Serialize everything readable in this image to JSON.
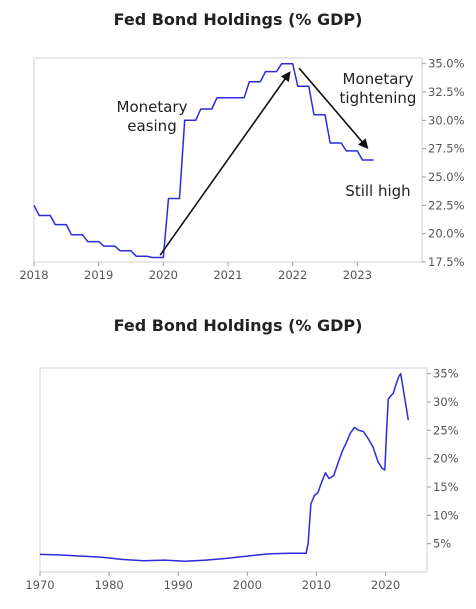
{
  "chart_data": [
    {
      "type": "line",
      "title": "Fed Bond Holdings (% GDP)",
      "xlim": [
        2018,
        2024
      ],
      "ylim": [
        17.5,
        35.5
      ],
      "x_ticks": [
        "2018",
        "2019",
        "2020",
        "2021",
        "2022",
        "2023"
      ],
      "y_ticks": [
        "17.5%",
        "20.0%",
        "22.5%",
        "25.0%",
        "27.5%",
        "30.0%",
        "32.5%",
        "35.0%"
      ],
      "y_axis_side": "right",
      "grid": false,
      "series_color": "#2b2bdc",
      "x": [
        2018.0,
        2018.08,
        2018.25,
        2018.33,
        2018.5,
        2018.58,
        2018.75,
        2018.83,
        2019.0,
        2019.08,
        2019.25,
        2019.33,
        2019.5,
        2019.58,
        2019.75,
        2019.83,
        2020.0,
        2020.08,
        2020.25,
        2020.33,
        2020.5,
        2020.58,
        2020.75,
        2020.83,
        2021.0,
        2021.08,
        2021.25,
        2021.33,
        2021.5,
        2021.58,
        2021.75,
        2021.83,
        2022.0,
        2022.08,
        2022.25,
        2022.33,
        2022.5,
        2022.58,
        2022.75,
        2022.83,
        2023.0,
        2023.08,
        2023.25
      ],
      "values": [
        22.5,
        21.6,
        21.6,
        20.8,
        20.8,
        19.9,
        19.9,
        19.3,
        19.3,
        18.9,
        18.9,
        18.5,
        18.5,
        18.0,
        18.0,
        17.9,
        17.9,
        23.1,
        23.1,
        30.0,
        30.0,
        31.0,
        31.0,
        32.0,
        32.0,
        32.0,
        32.0,
        33.4,
        33.4,
        34.3,
        34.3,
        35.0,
        35.0,
        33.0,
        33.0,
        30.5,
        30.5,
        28.0,
        28.0,
        27.3,
        27.3,
        26.5,
        26.5
      ],
      "annotations": [
        {
          "text": "Monetary",
          "line2": "easing"
        },
        {
          "text": "Monetary",
          "line2": "tightening"
        },
        {
          "text": "Still high"
        }
      ],
      "arrows": [
        {
          "from": [
            2019.95,
            18.1
          ],
          "to": [
            2021.95,
            34.2
          ]
        },
        {
          "from": [
            2022.1,
            34.6
          ],
          "to": [
            2023.15,
            27.6
          ]
        }
      ]
    },
    {
      "type": "line",
      "title": "Fed Bond Holdings (% GDP)",
      "xlim": [
        1970,
        2026
      ],
      "ylim": [
        0,
        36
      ],
      "x_ticks": [
        "1970",
        "1980",
        "1990",
        "2000",
        "2010",
        "2020"
      ],
      "y_ticks": [
        "5%",
        "10%",
        "15%",
        "20%",
        "25%",
        "30%",
        "35%"
      ],
      "y_axis_side": "right",
      "grid": false,
      "series_color": "#2b2bdc",
      "x": [
        1970,
        1973,
        1976,
        1979,
        1982,
        1985,
        1988,
        1991,
        1994,
        1997,
        2000,
        2003,
        2006,
        2008.5,
        2008.8,
        2009.2,
        2009.7,
        2010.2,
        2010.8,
        2011.3,
        2011.8,
        2012.5,
        2013.2,
        2013.8,
        2014.4,
        2014.9,
        2015.5,
        2016.1,
        2016.8,
        2017.5,
        2018.2,
        2018.9,
        2019.5,
        2019.9,
        2020.2,
        2020.4,
        2020.7,
        2021.1,
        2021.5,
        2021.9,
        2022.2,
        2022.6,
        2023.0,
        2023.3
      ],
      "values": [
        3.1,
        3.0,
        2.8,
        2.6,
        2.2,
        2.0,
        2.1,
        1.9,
        2.1,
        2.4,
        2.8,
        3.2,
        3.3,
        3.3,
        5.0,
        12.0,
        13.5,
        14.0,
        16.0,
        17.5,
        16.5,
        17.0,
        19.5,
        21.5,
        23.0,
        24.5,
        25.5,
        25.0,
        24.8,
        23.5,
        22.0,
        19.5,
        18.3,
        18.0,
        26.0,
        30.5,
        31.0,
        31.5,
        33.0,
        34.5,
        35.0,
        32.0,
        29.0,
        26.8
      ]
    }
  ]
}
